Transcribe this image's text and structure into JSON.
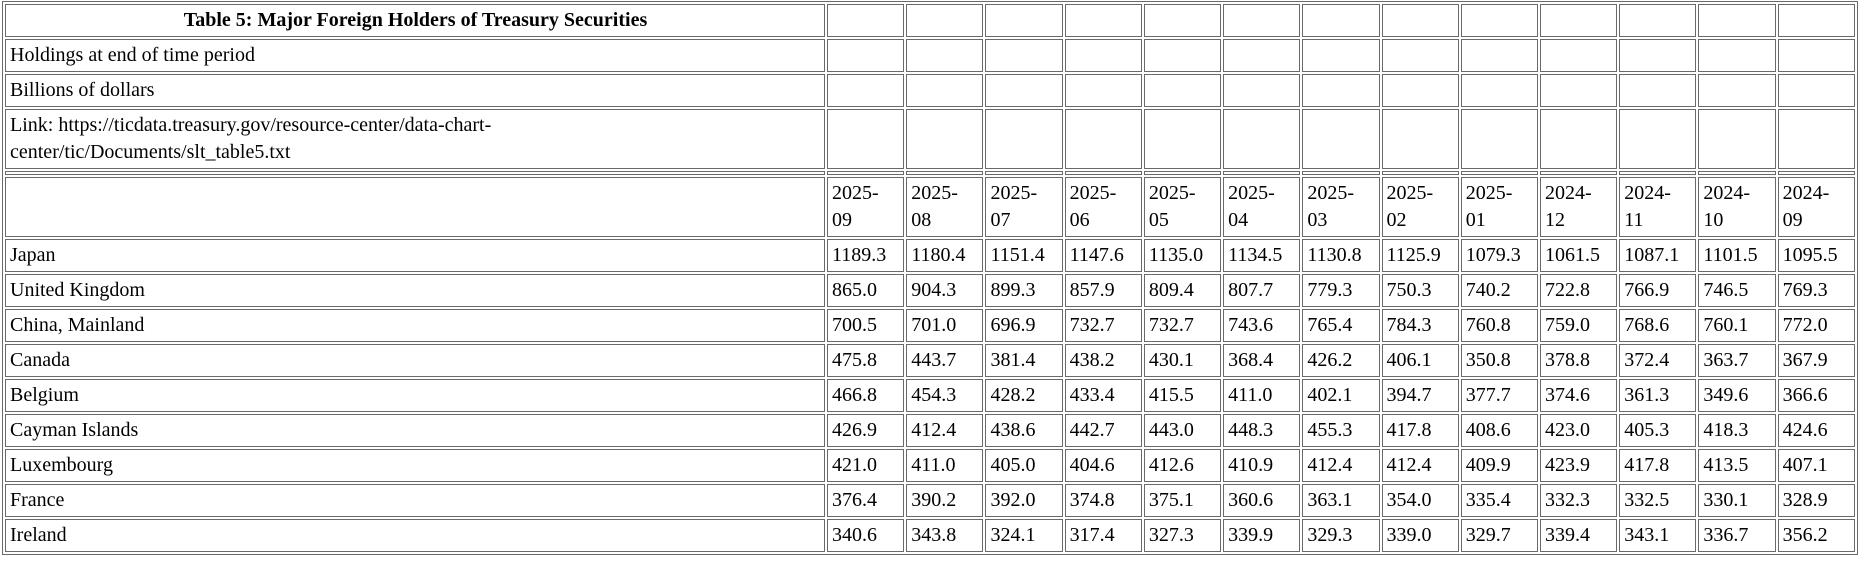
{
  "page": {
    "background": "#ffffff",
    "border_color": "#6a6a6a",
    "text_color": "#000000"
  },
  "table": {
    "title": "Table 5: Major Foreign Holders of Treasury Securities",
    "info_rows": [
      "Holdings at end of time period",
      "Billions of dollars",
      "Link: https://ticdata.treasury.gov/resource-center/data-chart-center/tic/Documents/slt_table5.txt"
    ],
    "columns": [
      "2025-09",
      "2025-08",
      "2025-07",
      "2025-06",
      "2025-05",
      "2025-04",
      "2025-03",
      "2025-02",
      "2025-01",
      "2024-12",
      "2024-11",
      "2024-10",
      "2024-09"
    ],
    "rows": [
      {
        "label": "Japan",
        "values": [
          "1189.3",
          "1180.4",
          "1151.4",
          "1147.6",
          "1135.0",
          "1134.5",
          "1130.8",
          "1125.9",
          "1079.3",
          "1061.5",
          "1087.1",
          "1101.5",
          "1095.5"
        ]
      },
      {
        "label": "United Kingdom",
        "values": [
          "865.0",
          "904.3",
          "899.3",
          "857.9",
          "809.4",
          "807.7",
          "779.3",
          "750.3",
          "740.2",
          "722.8",
          "766.9",
          "746.5",
          "769.3"
        ]
      },
      {
        "label": "China, Mainland",
        "values": [
          "700.5",
          "701.0",
          "696.9",
          "732.7",
          "732.7",
          "743.6",
          "765.4",
          "784.3",
          "760.8",
          "759.0",
          "768.6",
          "760.1",
          "772.0"
        ]
      },
      {
        "label": "Canada",
        "values": [
          "475.8",
          "443.7",
          "381.4",
          "438.2",
          "430.1",
          "368.4",
          "426.2",
          "406.1",
          "350.8",
          "378.8",
          "372.4",
          "363.7",
          "367.9"
        ]
      },
      {
        "label": "Belgium",
        "values": [
          "466.8",
          "454.3",
          "428.2",
          "433.4",
          "415.5",
          "411.0",
          "402.1",
          "394.7",
          "377.7",
          "374.6",
          "361.3",
          "349.6",
          "366.6"
        ]
      },
      {
        "label": "Cayman Islands",
        "values": [
          "426.9",
          "412.4",
          "438.6",
          "442.7",
          "443.0",
          "448.3",
          "455.3",
          "417.8",
          "408.6",
          "423.0",
          "405.3",
          "418.3",
          "424.6"
        ]
      },
      {
        "label": "Luxembourg",
        "values": [
          "421.0",
          "411.0",
          "405.0",
          "404.6",
          "412.6",
          "410.9",
          "412.4",
          "412.4",
          "409.9",
          "423.9",
          "417.8",
          "413.5",
          "407.1"
        ]
      },
      {
        "label": "France",
        "values": [
          "376.4",
          "390.2",
          "392.0",
          "374.8",
          "375.1",
          "360.6",
          "363.1",
          "354.0",
          "335.4",
          "332.3",
          "332.5",
          "330.1",
          "328.9"
        ]
      },
      {
        "label": "Ireland",
        "values": [
          "340.6",
          "343.8",
          "324.1",
          "317.4",
          "327.3",
          "339.9",
          "329.3",
          "339.0",
          "329.7",
          "339.4",
          "343.1",
          "336.7",
          "356.2"
        ]
      }
    ]
  },
  "chart_data": {
    "type": "table",
    "title": "Table 5: Major Foreign Holders of Treasury Securities",
    "subtitle": "Holdings at end of time period",
    "units": "Billions of dollars",
    "source_link": "https://ticdata.treasury.gov/resource-center/data-chart-center/tic/Documents/slt_table5.txt",
    "categories": [
      "2025-09",
      "2025-08",
      "2025-07",
      "2025-06",
      "2025-05",
      "2025-04",
      "2025-03",
      "2025-02",
      "2025-01",
      "2024-12",
      "2024-11",
      "2024-10",
      "2024-09"
    ],
    "series": [
      {
        "name": "Japan",
        "values": [
          1189.3,
          1180.4,
          1151.4,
          1147.6,
          1135.0,
          1134.5,
          1130.8,
          1125.9,
          1079.3,
          1061.5,
          1087.1,
          1101.5,
          1095.5
        ]
      },
      {
        "name": "United Kingdom",
        "values": [
          865.0,
          904.3,
          899.3,
          857.9,
          809.4,
          807.7,
          779.3,
          750.3,
          740.2,
          722.8,
          766.9,
          746.5,
          769.3
        ]
      },
      {
        "name": "China, Mainland",
        "values": [
          700.5,
          701.0,
          696.9,
          732.7,
          732.7,
          743.6,
          765.4,
          784.3,
          760.8,
          759.0,
          768.6,
          760.1,
          772.0
        ]
      },
      {
        "name": "Canada",
        "values": [
          475.8,
          443.7,
          381.4,
          438.2,
          430.1,
          368.4,
          426.2,
          406.1,
          350.8,
          378.8,
          372.4,
          363.7,
          367.9
        ]
      },
      {
        "name": "Belgium",
        "values": [
          466.8,
          454.3,
          428.2,
          433.4,
          415.5,
          411.0,
          402.1,
          394.7,
          377.7,
          374.6,
          361.3,
          349.6,
          366.6
        ]
      },
      {
        "name": "Cayman Islands",
        "values": [
          426.9,
          412.4,
          438.6,
          442.7,
          443.0,
          448.3,
          455.3,
          417.8,
          408.6,
          423.0,
          405.3,
          418.3,
          424.6
        ]
      },
      {
        "name": "Luxembourg",
        "values": [
          421.0,
          411.0,
          405.0,
          404.6,
          412.6,
          410.9,
          412.4,
          412.4,
          409.9,
          423.9,
          417.8,
          413.5,
          407.1
        ]
      },
      {
        "name": "France",
        "values": [
          376.4,
          390.2,
          392.0,
          374.8,
          375.1,
          360.6,
          363.1,
          354.0,
          335.4,
          332.3,
          332.5,
          330.1,
          328.9
        ]
      },
      {
        "name": "Ireland",
        "values": [
          340.6,
          343.8,
          324.1,
          317.4,
          327.3,
          339.9,
          329.3,
          339.0,
          329.7,
          339.4,
          343.1,
          336.7,
          356.2
        ]
      }
    ],
    "layout": {
      "grid": "bordered-cells",
      "legend": "none",
      "first_column": "country",
      "columns_order": "newest-to-oldest"
    }
  }
}
